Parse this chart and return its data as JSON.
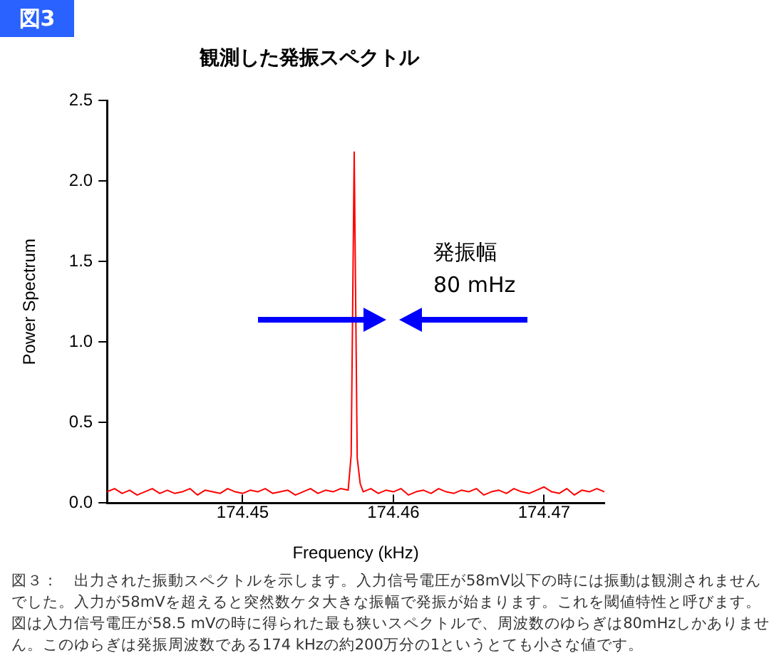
{
  "chart_data": {
    "type": "line",
    "title": "観測した発振スペクトル",
    "xlabel": "Frequency (kHz)",
    "ylabel": "Power Spectrum",
    "x": [
      174.441,
      174.4415,
      174.442,
      174.4425,
      174.443,
      174.4435,
      174.444,
      174.4445,
      174.445,
      174.4455,
      174.446,
      174.4465,
      174.447,
      174.4475,
      174.448,
      174.4485,
      174.449,
      174.4495,
      174.45,
      174.4505,
      174.451,
      174.4515,
      174.452,
      174.4525,
      174.453,
      174.4535,
      174.454,
      174.4545,
      174.455,
      174.4555,
      174.456,
      174.4565,
      174.457,
      174.4572,
      174.4574,
      174.4576,
      174.4578,
      174.458,
      174.4585,
      174.459,
      174.4595,
      174.46,
      174.4605,
      174.461,
      174.4615,
      174.462,
      174.4625,
      174.463,
      174.4635,
      174.464,
      174.4645,
      174.465,
      174.4655,
      174.466,
      174.4665,
      174.467,
      174.4675,
      174.468,
      174.4685,
      174.469,
      174.4695,
      174.47,
      174.4705,
      174.471,
      174.4715,
      174.472,
      174.4725,
      174.473,
      174.4735,
      174.474
    ],
    "series": [
      {
        "color": "#ff0000",
        "values": [
          0.07,
          0.09,
          0.06,
          0.08,
          0.05,
          0.07,
          0.09,
          0.06,
          0.08,
          0.06,
          0.07,
          0.09,
          0.05,
          0.08,
          0.07,
          0.06,
          0.09,
          0.07,
          0.06,
          0.08,
          0.07,
          0.09,
          0.06,
          0.07,
          0.08,
          0.05,
          0.07,
          0.09,
          0.06,
          0.08,
          0.07,
          0.09,
          0.08,
          0.3,
          2.18,
          0.28,
          0.12,
          0.07,
          0.09,
          0.06,
          0.08,
          0.07,
          0.09,
          0.05,
          0.07,
          0.08,
          0.06,
          0.09,
          0.07,
          0.06,
          0.08,
          0.07,
          0.09,
          0.05,
          0.07,
          0.08,
          0.06,
          0.09,
          0.07,
          0.06,
          0.08,
          0.1,
          0.07,
          0.06,
          0.09,
          0.05,
          0.08,
          0.07,
          0.09,
          0.07
        ]
      }
    ],
    "xlim": [
      174.441,
      174.474
    ],
    "xticks": [
      174.45,
      174.46,
      174.47
    ],
    "ylim": [
      0,
      2.5
    ],
    "yticks": [
      {
        "value": 0,
        "label": "0.0"
      },
      {
        "value": 0.5,
        "label": "0.5"
      },
      {
        "value": 1,
        "label": "1.0"
      },
      {
        "value": 1.5,
        "label": "1.5"
      },
      {
        "value": 2,
        "label": "2.0"
      },
      {
        "value": 2.5,
        "label": "2.5"
      }
    ],
    "grid": false,
    "legend": false,
    "marker": "none",
    "line_style": "solid",
    "annotations": [
      "図3",
      "発振幅",
      "80 mHz",
      "図３：　出力された振動スペクトルを示します。入力信号電圧が58mV以下の時には振動は観測されませんでした。入力が58mVを超えると突然数ケタ大きな振幅で発振が始まります。これを閾値特性と呼びます。図は入力信号電圧が58.5 mVの時に得られた最も狭いスペクトルで、周波数のゆらぎは80mHzしかありません。このゆらぎは発振周波数である174 kHzの約200万分の1というとても小さな値です。"
    ]
  }
}
